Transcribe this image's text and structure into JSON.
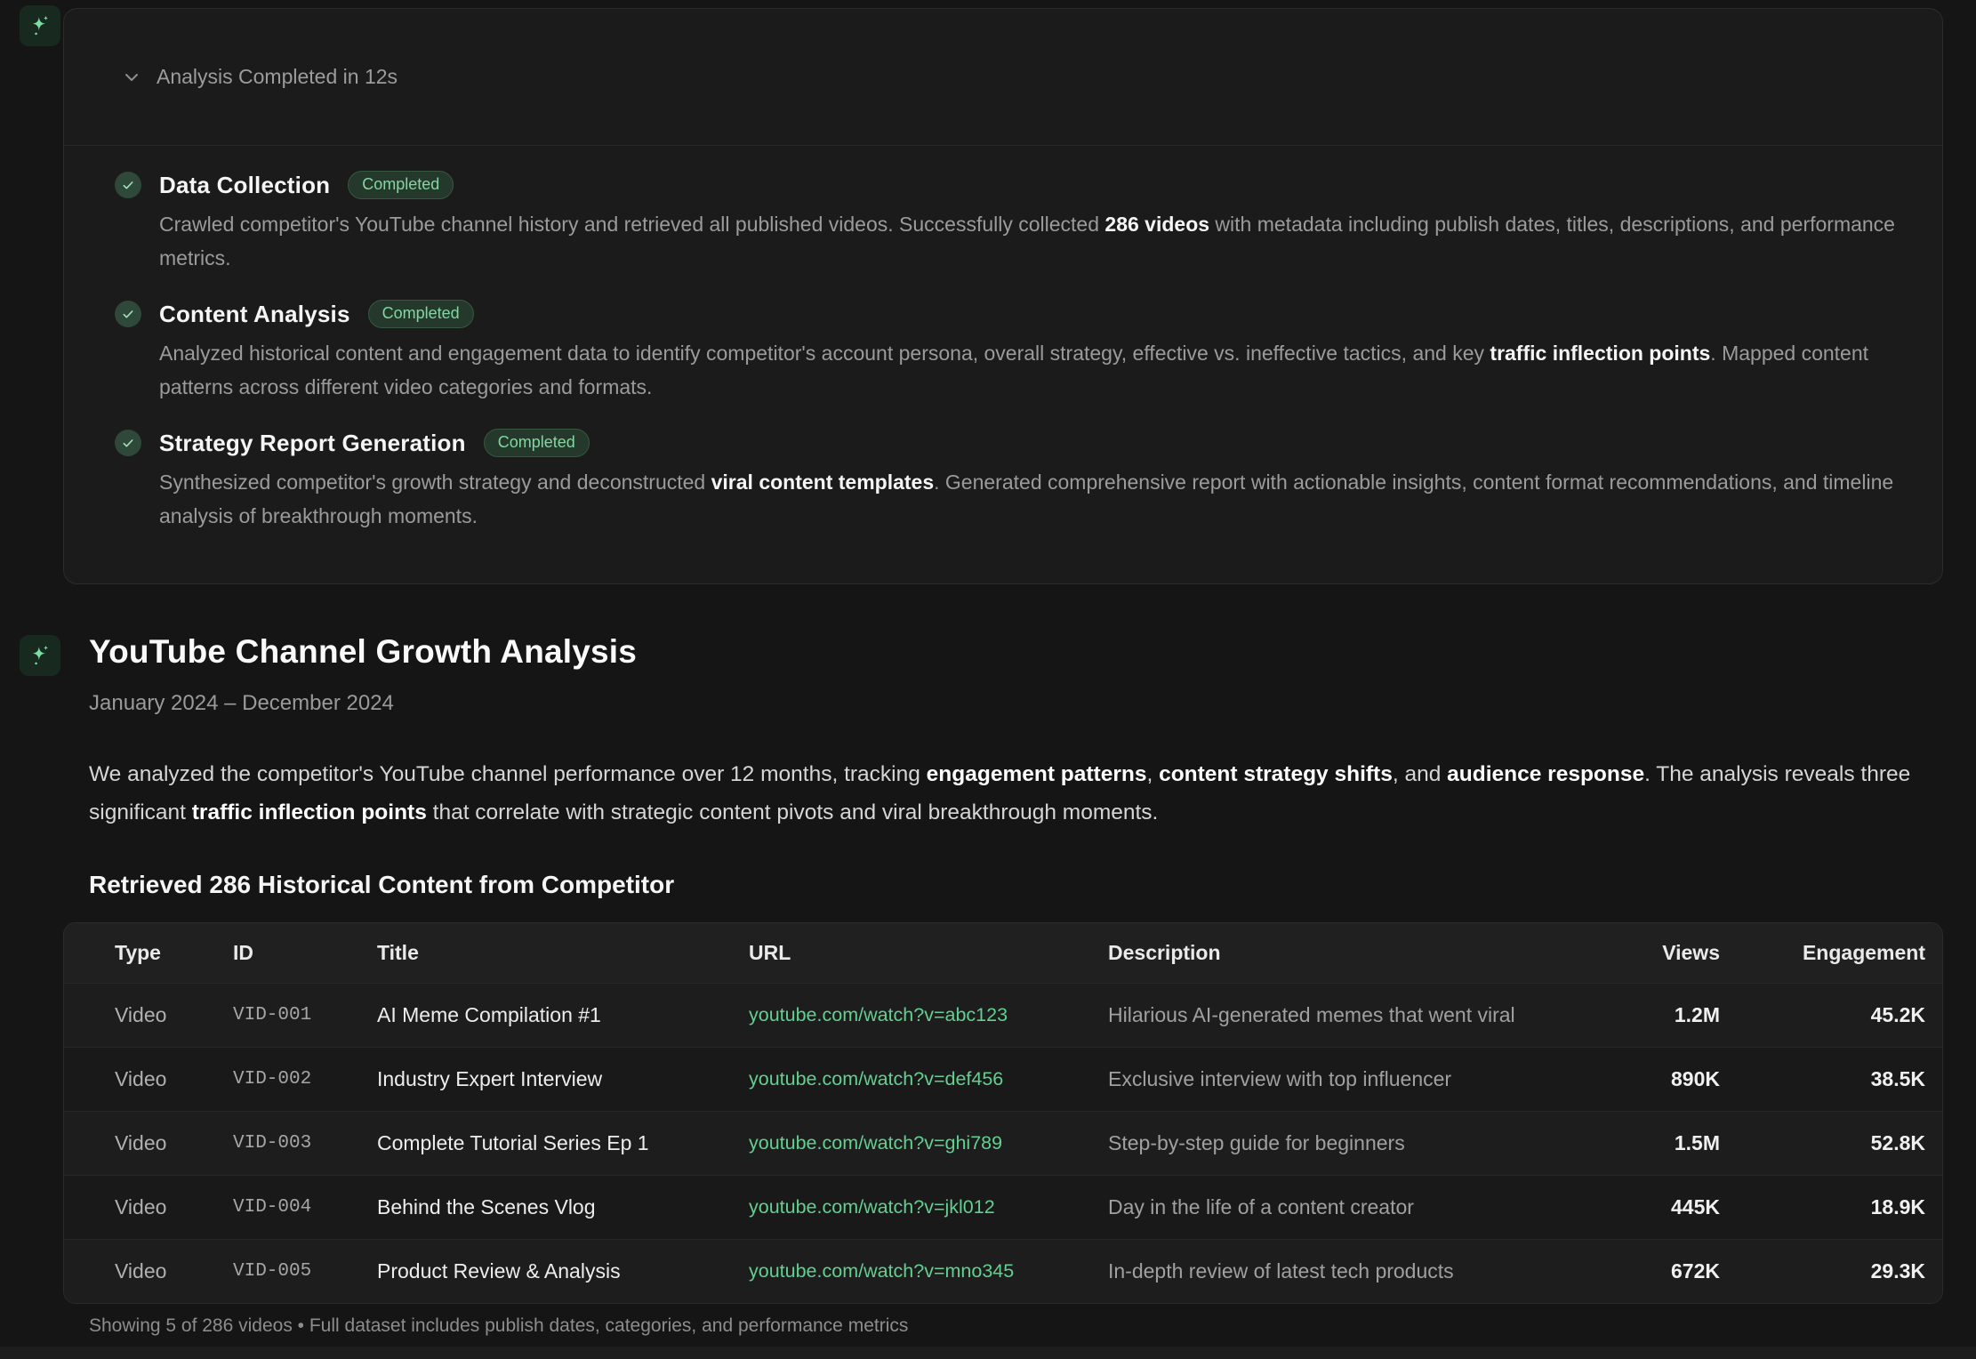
{
  "colors": {
    "accent_green": "#6ee7a0",
    "link_green": "#63cf90",
    "badge_text": "#82d7a0",
    "badge_bg": "#24392c",
    "panel_bg": "#1b1b1b",
    "page_bg": "#151515"
  },
  "analysis_panel": {
    "header_label": "Analysis Completed in 12s",
    "steps": [
      {
        "title": "Data Collection",
        "badge": "Completed",
        "description": [
          {
            "t": "Crawled competitor's YouTube channel history and retrieved all published videos. Successfully collected "
          },
          {
            "t": "286 videos",
            "b": true
          },
          {
            "t": " with metadata including publish dates, titles, descriptions, and performance metrics."
          }
        ]
      },
      {
        "title": "Content Analysis",
        "badge": "Completed",
        "description": [
          {
            "t": "Analyzed historical content and engagement data to identify competitor's account persona, overall strategy, effective vs. ineffective tactics, and key "
          },
          {
            "t": "traffic inflection points",
            "b": true
          },
          {
            "t": ". Mapped content patterns across different video categories and formats."
          }
        ]
      },
      {
        "title": "Strategy Report Generation",
        "badge": "Completed",
        "description": [
          {
            "t": "Synthesized competitor's growth strategy and deconstructed "
          },
          {
            "t": "viral content templates",
            "b": true
          },
          {
            "t": ". Generated comprehensive report with actionable insights, content format recommendations, and timeline analysis of breakthrough moments."
          }
        ]
      }
    ]
  },
  "report": {
    "title": "YouTube Channel Growth Analysis",
    "date_range": "January 2024 – December 2024",
    "intro": [
      {
        "t": "We analyzed the competitor's YouTube channel performance over 12 months, tracking "
      },
      {
        "t": "engagement patterns",
        "b": true
      },
      {
        "t": ", "
      },
      {
        "t": "content strategy shifts",
        "b": true
      },
      {
        "t": ", and "
      },
      {
        "t": "audience response",
        "b": true
      },
      {
        "t": ". The analysis reveals three significant "
      },
      {
        "t": "traffic inflection points",
        "b": true
      },
      {
        "t": " that correlate with strategic content pivots and viral breakthrough moments."
      }
    ],
    "section_heading": "Retrieved 286 Historical Content from Competitor"
  },
  "table": {
    "columns": [
      "Type",
      "ID",
      "Title",
      "URL",
      "Description",
      "Views",
      "Engagement"
    ],
    "rows": [
      {
        "type": "Video",
        "id": "VID-001",
        "title": "AI Meme Compilation #1",
        "url": "youtube.com/watch?v=abc123",
        "description": "Hilarious AI-generated memes that went viral",
        "views": "1.2M",
        "engagement": "45.2K"
      },
      {
        "type": "Video",
        "id": "VID-002",
        "title": "Industry Expert Interview",
        "url": "youtube.com/watch?v=def456",
        "description": "Exclusive interview with top influencer",
        "views": "890K",
        "engagement": "38.5K"
      },
      {
        "type": "Video",
        "id": "VID-003",
        "title": "Complete Tutorial Series Ep 1",
        "url": "youtube.com/watch?v=ghi789",
        "description": "Step-by-step guide for beginners",
        "views": "1.5M",
        "engagement": "52.8K"
      },
      {
        "type": "Video",
        "id": "VID-004",
        "title": "Behind the Scenes Vlog",
        "url": "youtube.com/watch?v=jkl012",
        "description": "Day in the life of a content creator",
        "views": "445K",
        "engagement": "18.9K"
      },
      {
        "type": "Video",
        "id": "VID-005",
        "title": "Product Review & Analysis",
        "url": "youtube.com/watch?v=mno345",
        "description": "In-depth review of latest tech products",
        "views": "672K",
        "engagement": "29.3K"
      }
    ],
    "footer": "Showing 5 of 286 videos • Full dataset includes publish dates, categories, and performance metrics"
  }
}
